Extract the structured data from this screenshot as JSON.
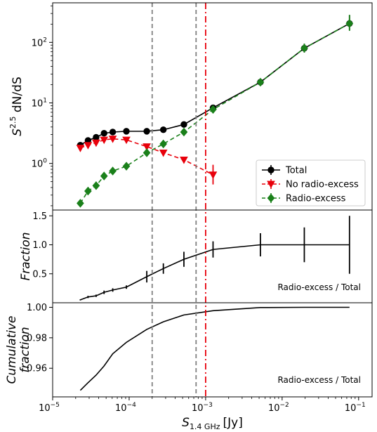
{
  "figure": {
    "xlabel": "S",
    "xlabel_sub": "1.4 GHz",
    "xlabel_unit": "[Jy]",
    "vlines": [
      {
        "x": 0.0002,
        "style": "dashed",
        "color": "#808080"
      },
      {
        "x": 0.00075,
        "style": "dashed",
        "color": "#808080"
      },
      {
        "x": 0.001,
        "style": "dashdot",
        "color": "#e8000b"
      }
    ],
    "xticks": [
      {
        "value": 1e-05,
        "base": "10",
        "exp": "−5"
      },
      {
        "value": 0.0001,
        "base": "10",
        "exp": "−4"
      },
      {
        "value": 0.001,
        "base": "10",
        "exp": "−3"
      },
      {
        "value": 0.01,
        "base": "10",
        "exp": "−2"
      },
      {
        "value": 0.1,
        "base": "10",
        "exp": "−1"
      }
    ],
    "xlim": [
      1e-05,
      0.15
    ]
  },
  "chart_data": [
    {
      "type": "line",
      "xscale": "log",
      "yscale": "log",
      "ylabel": "S",
      "ylabel_sup": "2.5",
      "ylabel_rest": " dN/dS",
      "ylim": [
        0.17,
        450
      ],
      "yticks": [
        {
          "value": 1,
          "base": "10",
          "exp": "0"
        },
        {
          "value": 10,
          "base": "10",
          "exp": "1"
        },
        {
          "value": 100,
          "base": "10",
          "exp": "2"
        }
      ],
      "legend_placement": "lower-right",
      "series": [
        {
          "name": "Total",
          "color": "#000000",
          "marker": "circle",
          "dash": "solid",
          "x": [
            2.3e-05,
            2.9e-05,
            3.7e-05,
            4.7e-05,
            6.1e-05,
            9.2e-05,
            0.00017,
            0.00028,
            0.00052,
            0.00125,
            0.0052,
            0.0195,
            0.076
          ],
          "y": [
            2.0,
            2.4,
            2.7,
            3.15,
            3.3,
            3.4,
            3.4,
            3.6,
            4.4,
            8.3,
            22,
            80,
            205
          ],
          "yerr_low": [
            null,
            null,
            null,
            null,
            null,
            null,
            null,
            null,
            null,
            7.6,
            20,
            68,
            160
          ],
          "yerr_high": [
            null,
            null,
            null,
            null,
            null,
            null,
            null,
            null,
            null,
            9.2,
            24,
            95,
            280
          ]
        },
        {
          "name": "No radio-excess",
          "color": "#e8000b",
          "marker": "triangle-down",
          "dash": "dashed",
          "x": [
            2.3e-05,
            2.9e-05,
            3.7e-05,
            4.7e-05,
            6.1e-05,
            9.2e-05,
            0.00017,
            0.00028,
            0.00052,
            0.00125
          ],
          "y": [
            1.8,
            2.0,
            2.2,
            2.45,
            2.55,
            2.45,
            1.9,
            1.5,
            1.15,
            0.65
          ],
          "yerr_low": [
            null,
            null,
            null,
            null,
            null,
            null,
            null,
            null,
            null,
            0.45
          ],
          "yerr_high": [
            null,
            null,
            null,
            null,
            null,
            null,
            null,
            null,
            null,
            0.95
          ]
        },
        {
          "name": "Radio-excess",
          "color": "#1a801a",
          "marker": "diamond",
          "dash": "dashed",
          "x": [
            2.3e-05,
            2.9e-05,
            3.7e-05,
            4.7e-05,
            6.1e-05,
            9.2e-05,
            0.00017,
            0.00028,
            0.00052,
            0.00125,
            0.0052,
            0.0195,
            0.076
          ],
          "y": [
            0.22,
            0.35,
            0.43,
            0.62,
            0.75,
            0.9,
            1.5,
            2.1,
            3.3,
            7.8,
            22,
            80,
            205
          ],
          "yerr_low": [
            null,
            null,
            null,
            null,
            null,
            null,
            null,
            null,
            null,
            7.0,
            20,
            68,
            155
          ],
          "yerr_high": [
            null,
            null,
            null,
            null,
            null,
            null,
            null,
            null,
            null,
            8.8,
            24,
            95,
            285
          ]
        }
      ]
    },
    {
      "type": "line",
      "xscale": "log",
      "ylabel": "Fraction",
      "ylim": [
        0.0,
        1.6
      ],
      "yticks": [
        {
          "value": 0.5,
          "label": "0.5"
        },
        {
          "value": 1.0,
          "label": "1.0"
        },
        {
          "value": 1.5,
          "label": "1.5"
        }
      ],
      "annotation": "Radio-excess / Total",
      "series": [
        {
          "name": "Radio-excess / Total",
          "color": "#000000",
          "x": [
            2.3e-05,
            2.9e-05,
            3.7e-05,
            4.7e-05,
            6.1e-05,
            9.2e-05,
            0.00017,
            0.00028,
            0.00052,
            0.00125,
            0.0052,
            0.0195,
            0.076
          ],
          "y": [
            0.05,
            0.1,
            0.12,
            0.18,
            0.22,
            0.27,
            0.45,
            0.59,
            0.75,
            0.92,
            1.0,
            1.0,
            1.0
          ],
          "yerr_low": [
            0.04,
            0.08,
            0.1,
            0.15,
            0.19,
            0.24,
            0.35,
            0.5,
            0.62,
            0.78,
            0.8,
            0.7,
            0.5
          ],
          "yerr_high": [
            0.06,
            0.12,
            0.14,
            0.21,
            0.25,
            0.3,
            0.55,
            0.68,
            0.88,
            1.06,
            1.2,
            1.3,
            1.5
          ]
        }
      ]
    },
    {
      "type": "line",
      "xscale": "log",
      "ylabel_line1": "Cumulative",
      "ylabel_line2": "fraction",
      "ylim": [
        0.9412,
        1.003
      ],
      "yticks": [
        {
          "value": 0.96,
          "label": "0.96"
        },
        {
          "value": 0.98,
          "label": "0.98"
        },
        {
          "value": 1.0,
          "label": "1.00"
        }
      ],
      "annotation": "Radio-excess / Total",
      "series": [
        {
          "name": "Radio-excess / Total",
          "color": "#000000",
          "x": [
            2.3e-05,
            2.9e-05,
            3.7e-05,
            4.7e-05,
            6.1e-05,
            9.2e-05,
            0.00017,
            0.00028,
            0.00052,
            0.00125,
            0.0052,
            0.0195,
            0.076
          ],
          "y": [
            0.9455,
            0.9505,
            0.9555,
            0.9615,
            0.9695,
            0.977,
            0.9855,
            0.9905,
            0.995,
            0.9978,
            0.99985,
            1.0,
            1.0
          ]
        }
      ]
    }
  ]
}
